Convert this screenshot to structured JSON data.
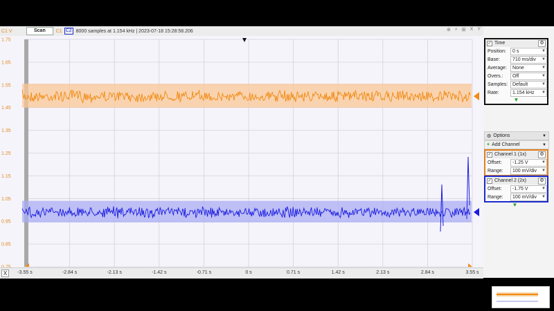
{
  "topbar": {
    "y_unit": "C1 V",
    "scan_label": "Scan",
    "c1_label": "C1",
    "c2_label": "C2",
    "info_text": "8000 samples at 1.154 kHz | 2023-07-18 15:28:58.206",
    "icons": [
      "crosshair-icon",
      "zoom-icon",
      "zoom-fit-icon",
      "x-axis-icon",
      "y-axis-icon"
    ]
  },
  "y_axis": {
    "ticks": [
      "1.75",
      "1.65",
      "1.55",
      "1.45",
      "1.35",
      "1.25",
      "1.15",
      "1.05",
      "0.95",
      "0.85",
      "0.75"
    ]
  },
  "x_axis": {
    "x_button": "X",
    "ticks": [
      "-3.55 s",
      "-2.84 s",
      "-2.13 s",
      "-1.42 s",
      "-0.71 s",
      "0 s",
      "0.71 s",
      "1.42 s",
      "2.13 s",
      "2.84 s",
      "3.55 s"
    ]
  },
  "chart_data": {
    "type": "line",
    "x_range": [
      -3.55,
      3.55
    ],
    "ylim": [
      0.75,
      1.75
    ],
    "grid": true,
    "series": [
      {
        "name": "Channel 1 (1x)",
        "color": "#f08a12",
        "mean": 1.5,
        "noise_envelope": [
          1.45,
          1.555
        ]
      },
      {
        "name": "Channel 2 (2x)",
        "color": "#1a1ae0",
        "mean": 0.99,
        "noise_envelope": [
          0.945,
          1.04
        ]
      }
    ]
  },
  "panel": {
    "time": {
      "title": "Time",
      "rows": [
        {
          "label": "Position:",
          "value": "0 s"
        },
        {
          "label": "Base:",
          "value": "710 ms/div"
        },
        {
          "label": "Average:",
          "value": "None"
        },
        {
          "label": "Overs.:",
          "value": "Off"
        },
        {
          "label": "Samples:",
          "value": "Default"
        },
        {
          "label": "Rate:",
          "value": "1.154 kHz"
        }
      ]
    },
    "options_label": "Options",
    "add_channel_label": "Add Channel",
    "ch1": {
      "title": "Channel 1 (1x)",
      "rows": [
        {
          "label": "Offset:",
          "value": "-1.25 V"
        },
        {
          "label": "Range:",
          "value": "100 mV/div"
        }
      ]
    },
    "ch2": {
      "title": "Channel 2 (2x)",
      "rows": [
        {
          "label": "Offset:",
          "value": "-1.75 V"
        },
        {
          "label": "Range:",
          "value": "100 mV/div"
        }
      ]
    }
  },
  "colors": {
    "ch1": "#f08a12",
    "ch2": "#1a1ae0",
    "time_border": "#111111",
    "ch1_border": "#e0801e",
    "ch2_border": "#1a2ad0"
  }
}
